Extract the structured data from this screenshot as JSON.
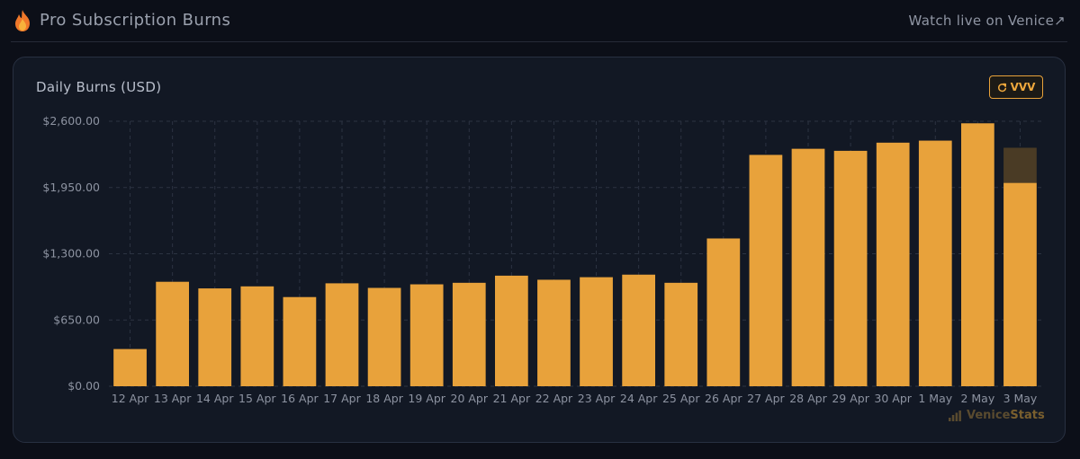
{
  "header": {
    "title": "Pro Subscription Burns",
    "watch_link": "Watch live on Venice↗",
    "icon": "flame-icon"
  },
  "card": {
    "title": "Daily Burns (USD)",
    "token_button": "VVV",
    "token_icon": "refresh-icon"
  },
  "watermark": {
    "brand_a": "Venice",
    "brand_b": "Stats"
  },
  "colors": {
    "bar": "#e8a23b",
    "pending_bar": "#4a3b25",
    "grid": "#2c3342",
    "background": "#0c0f18",
    "card": "#121824"
  },
  "chart_data": {
    "type": "bar",
    "title": "Daily Burns (USD)",
    "xlabel": "",
    "ylabel": "",
    "ylim": [
      0,
      2600
    ],
    "yticks": [
      0,
      650,
      1300,
      1950,
      2600
    ],
    "ytick_labels": [
      "$0.00",
      "$650.00",
      "$1,300.00",
      "$1,950.00",
      "$2,600.00"
    ],
    "grid": true,
    "categories": [
      "12 Apr",
      "13 Apr",
      "14 Apr",
      "15 Apr",
      "16 Apr",
      "17 Apr",
      "18 Apr",
      "19 Apr",
      "20 Apr",
      "21 Apr",
      "22 Apr",
      "23 Apr",
      "24 Apr",
      "25 Apr",
      "26 Apr",
      "27 Apr",
      "28 Apr",
      "29 Apr",
      "30 Apr",
      "1 May",
      "2 May",
      "3 May"
    ],
    "values": [
      365,
      1025,
      960,
      980,
      875,
      1010,
      965,
      1000,
      1015,
      1085,
      1045,
      1070,
      1095,
      1015,
      1450,
      2270,
      2330,
      2310,
      2390,
      2410,
      2580,
      1995
    ],
    "pending": [
      0,
      0,
      0,
      0,
      0,
      0,
      0,
      0,
      0,
      0,
      0,
      0,
      0,
      0,
      0,
      0,
      0,
      0,
      0,
      0,
      0,
      345
    ]
  }
}
